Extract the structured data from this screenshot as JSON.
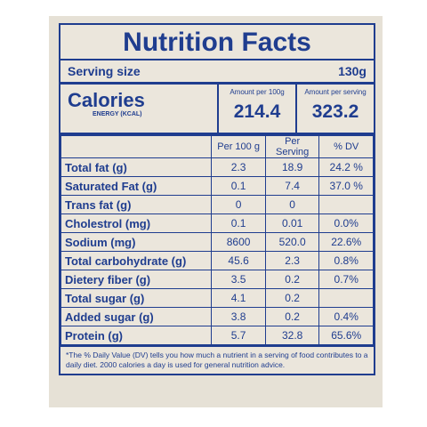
{
  "title": "Nutrition Facts",
  "serving": {
    "label": "Serving size",
    "value": "130g"
  },
  "calories": {
    "title": "Calories",
    "subtitle": "ENERGY (KCAL)",
    "per100_header": "Amount per 100g",
    "per100": "214.4",
    "perServing_header": "Amount per serving",
    "perServing": "323.2"
  },
  "table": {
    "header": [
      "Per 100 g",
      "Per Serving",
      "% DV"
    ],
    "rows": [
      [
        "Total fat (g)",
        "2.3",
        "18.9",
        "24.2 %"
      ],
      [
        "Saturated Fat (g)",
        "0.1",
        "7.4",
        "37.0 %"
      ],
      [
        "Trans fat (g)",
        "0",
        "0"
      ],
      [
        "Cholestrol (mg)",
        "0.1",
        "0.01",
        "0.0%"
      ],
      [
        "Sodium  (mg)",
        "8600",
        "520.0",
        "22.6%"
      ],
      [
        "Total carbohydrate (g)",
        "45.6",
        "2.3",
        "0.8%"
      ],
      [
        "Dietery fiber (g)",
        "3.5",
        "0.2",
        "0.7%"
      ],
      [
        "Total sugar (g)",
        "4.1",
        "0.2"
      ],
      [
        "Added sugar (g)",
        "3.8",
        "0.2",
        "0.4%"
      ],
      [
        "Protein (g)",
        "5.7",
        "32.8",
        "65.6%"
      ]
    ]
  },
  "note": "*The % Daily Value (DV) tells you how much a nutrient in a serving of food contributes to a daily diet. 2000 calories a day is used for general nutrition advice."
}
